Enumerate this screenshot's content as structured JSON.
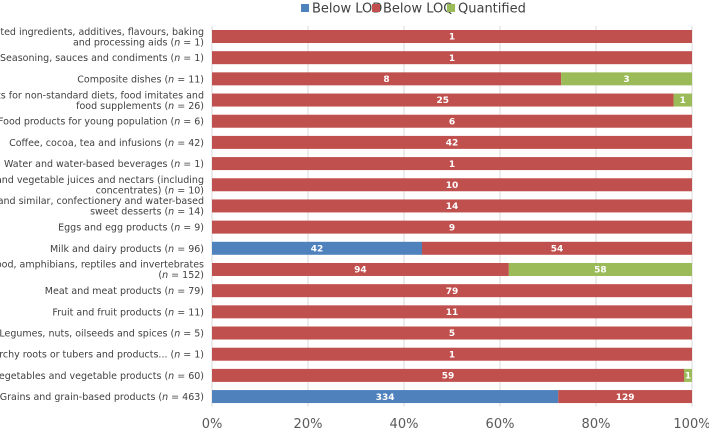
{
  "chart_data": {
    "type": "bar",
    "orientation": "horizontal",
    "stacked": "percent",
    "title": "",
    "xlabel": "",
    "ylabel": "",
    "xlim": [
      0,
      100
    ],
    "x_ticks": [
      "0%",
      "20%",
      "40%",
      "60%",
      "80%",
      "100%"
    ],
    "legend_position": "top",
    "categories": [
      {
        "lines": [
          {
            "text": "Major isolated ingredients, additives, flavours, baking"
          },
          {
            "text": "and processing aids (",
            "n": "n",
            "rest": " = 1)"
          }
        ]
      },
      {
        "lines": [
          {
            "text": "Seasoning, sauces and condiments (",
            "n": "n",
            "rest": " = 1)"
          }
        ]
      },
      {
        "lines": [
          {
            "text": "Composite dishes (",
            "n": "n",
            "rest": " = 11)"
          }
        ]
      },
      {
        "lines": [
          {
            "text": "Products for non-standard diets, food imitates and"
          },
          {
            "text": "food supplements (",
            "n": "n",
            "rest": " = 26)"
          }
        ]
      },
      {
        "lines": [
          {
            "text": "Food products for young population (",
            "n": "n",
            "rest": " = 6)"
          }
        ]
      },
      {
        "lines": [
          {
            "text": "Coffee, cocoa, tea and infusions (",
            "n": "n",
            "rest": " = 42)"
          }
        ]
      },
      {
        "lines": [
          {
            "text": "Water and water-based beverages (",
            "n": "n",
            "rest": " = 1)"
          }
        ]
      },
      {
        "lines": [
          {
            "text": "Fruit and vegetable juices and nectars (including"
          },
          {
            "text": "concentrates) (",
            "n": "n",
            "rest": " = 10)"
          }
        ]
      },
      {
        "lines": [
          {
            "text": "Sugar and similar, confectionery and water-based"
          },
          {
            "text": "sweet desserts (",
            "n": "n",
            "rest": " = 14)"
          }
        ]
      },
      {
        "lines": [
          {
            "text": "Eggs and egg products (",
            "n": "n",
            "rest": " = 9)"
          }
        ]
      },
      {
        "lines": [
          {
            "text": "Milk and dairy products (",
            "n": "n",
            "rest": " = 96)"
          }
        ]
      },
      {
        "lines": [
          {
            "text": "Fish, seafood, amphibians, reptiles and invertebrates"
          },
          {
            "text": "(",
            "n": "n",
            "rest": " = 152)"
          }
        ]
      },
      {
        "lines": [
          {
            "text": "Meat and meat products (",
            "n": "n",
            "rest": " = 79)"
          }
        ]
      },
      {
        "lines": [
          {
            "text": "Fruit and fruit products (",
            "n": "n",
            "rest": " = 11)"
          }
        ]
      },
      {
        "lines": [
          {
            "text": "Legumes, nuts, oilseeds and spices (",
            "n": "n",
            "rest": " = 5)"
          }
        ]
      },
      {
        "lines": [
          {
            "text": "Starchy roots or tubers and products... (",
            "n": "n",
            "rest": " = 1)"
          }
        ]
      },
      {
        "lines": [
          {
            "text": "Vegetables and vegetable products (",
            "n": "n",
            "rest": " = 60)"
          }
        ]
      },
      {
        "lines": [
          {
            "text": "Grains and grain-based products (",
            "n": "n",
            "rest": " = 463)"
          }
        ]
      }
    ],
    "series": [
      {
        "name": "Below LOD",
        "color": "#4f81bd",
        "values": [
          0,
          0,
          0,
          0,
          0,
          0,
          0,
          0,
          0,
          0,
          42,
          0,
          0,
          0,
          0,
          0,
          0,
          334
        ]
      },
      {
        "name": "Below LOQ",
        "color": "#c0504d",
        "values": [
          1,
          1,
          8,
          25,
          6,
          42,
          1,
          10,
          14,
          9,
          54,
          94,
          79,
          11,
          5,
          1,
          59,
          129
        ]
      },
      {
        "name": "Quantified",
        "color": "#9bbb59",
        "values": [
          0,
          0,
          3,
          1,
          0,
          0,
          0,
          0,
          0,
          0,
          0,
          58,
          0,
          0,
          0,
          0,
          1,
          0
        ]
      }
    ]
  }
}
